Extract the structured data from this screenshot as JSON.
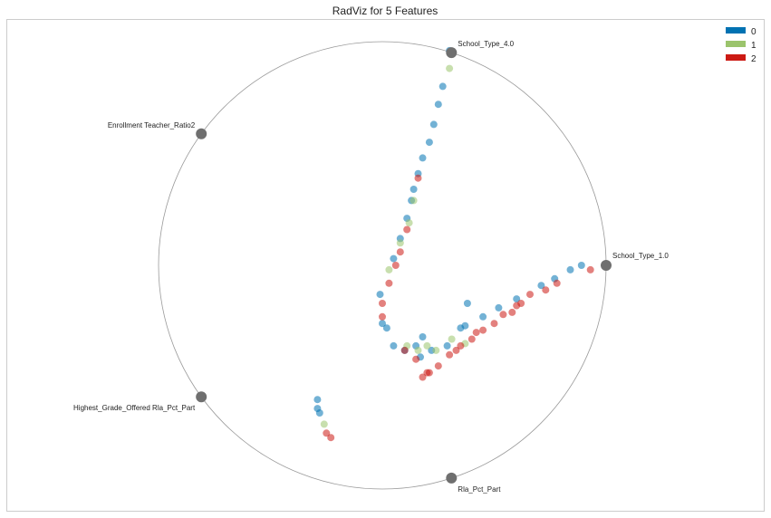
{
  "chart_data": {
    "type": "scatter",
    "kind": "radviz",
    "title": "RadViz for 5 Features",
    "xlabel": "",
    "ylabel": "",
    "xlim": [
      -1.02,
      1.02
    ],
    "ylim": [
      -1.02,
      1.02
    ],
    "grid": false,
    "legend_position": "top-right",
    "anchors": [
      {
        "name": "School_Type_1.0",
        "angle_deg": 0
      },
      {
        "name": "School_Type_4.0",
        "angle_deg": 72
      },
      {
        "name": "Enrollment Teacher_Ratio2",
        "angle_deg": 144
      },
      {
        "name": "Highest_Grade_Offered Rla_Pct_Part",
        "angle_deg": 216
      },
      {
        "name": "Rla_Pct_Part",
        "angle_deg": 288
      }
    ],
    "series": [
      {
        "name": "0",
        "color": "#0072B2",
        "points": [
          [
            0.3,
            0.96
          ],
          [
            0.27,
            0.8
          ],
          [
            0.25,
            0.72
          ],
          [
            0.23,
            0.63
          ],
          [
            0.21,
            0.55
          ],
          [
            0.18,
            0.48
          ],
          [
            0.16,
            0.41
          ],
          [
            0.14,
            0.34
          ],
          [
            0.13,
            0.29
          ],
          [
            0.11,
            0.21
          ],
          [
            0.08,
            0.12
          ],
          [
            0.05,
            0.03
          ],
          [
            -0.01,
            -0.13
          ],
          [
            0.0,
            -0.26
          ],
          [
            0.02,
            -0.28
          ],
          [
            0.05,
            -0.36
          ],
          [
            0.1,
            -0.38
          ],
          [
            0.15,
            -0.36
          ],
          [
            0.17,
            -0.41
          ],
          [
            0.22,
            -0.38
          ],
          [
            0.29,
            -0.36
          ],
          [
            0.35,
            -0.28
          ],
          [
            0.45,
            -0.23
          ],
          [
            0.52,
            -0.19
          ],
          [
            0.6,
            -0.15
          ],
          [
            0.71,
            -0.09
          ],
          [
            0.77,
            -0.06
          ],
          [
            0.89,
            0.0
          ],
          [
            0.84,
            -0.02
          ],
          [
            0.37,
            -0.27
          ],
          [
            -0.29,
            -0.6
          ],
          [
            -0.29,
            -0.64
          ],
          [
            -0.28,
            -0.66
          ],
          [
            0.18,
            -0.32
          ],
          [
            0.38,
            -0.17
          ]
        ]
      },
      {
        "name": "1",
        "color": "#9BC46C",
        "points": [
          [
            0.3,
            0.88
          ],
          [
            0.14,
            0.29
          ],
          [
            0.12,
            0.19
          ],
          [
            0.08,
            0.1
          ],
          [
            0.03,
            -0.02
          ],
          [
            0.11,
            -0.36
          ],
          [
            0.16,
            -0.38
          ],
          [
            0.37,
            -0.35
          ],
          [
            0.24,
            -0.38
          ],
          [
            -0.26,
            -0.71
          ],
          [
            0.2,
            -0.36
          ],
          [
            0.31,
            -0.33
          ]
        ]
      },
      {
        "name": "2",
        "color": "#CC1A14",
        "points": [
          [
            0.93,
            -0.02
          ],
          [
            0.78,
            -0.08
          ],
          [
            0.73,
            -0.11
          ],
          [
            0.66,
            -0.13
          ],
          [
            0.62,
            -0.17
          ],
          [
            0.58,
            -0.21
          ],
          [
            0.54,
            -0.22
          ],
          [
            0.5,
            -0.26
          ],
          [
            0.45,
            -0.29
          ],
          [
            0.4,
            -0.33
          ],
          [
            0.35,
            -0.36
          ],
          [
            0.3,
            -0.4
          ],
          [
            0.25,
            -0.45
          ],
          [
            0.2,
            -0.48
          ],
          [
            0.18,
            -0.5
          ],
          [
            0.21,
            -0.48
          ],
          [
            0.15,
            -0.42
          ],
          [
            0.1,
            -0.38
          ],
          [
            0.0,
            -0.17
          ],
          [
            0.03,
            -0.08
          ],
          [
            0.06,
            0.0
          ],
          [
            0.08,
            0.06
          ],
          [
            0.11,
            0.16
          ],
          [
            0.16,
            0.39
          ],
          [
            0.0,
            -0.23
          ],
          [
            -0.25,
            -0.75
          ],
          [
            -0.23,
            -0.77
          ],
          [
            0.33,
            -0.38
          ],
          [
            0.42,
            -0.3
          ],
          [
            0.6,
            -0.18
          ]
        ]
      }
    ]
  }
}
